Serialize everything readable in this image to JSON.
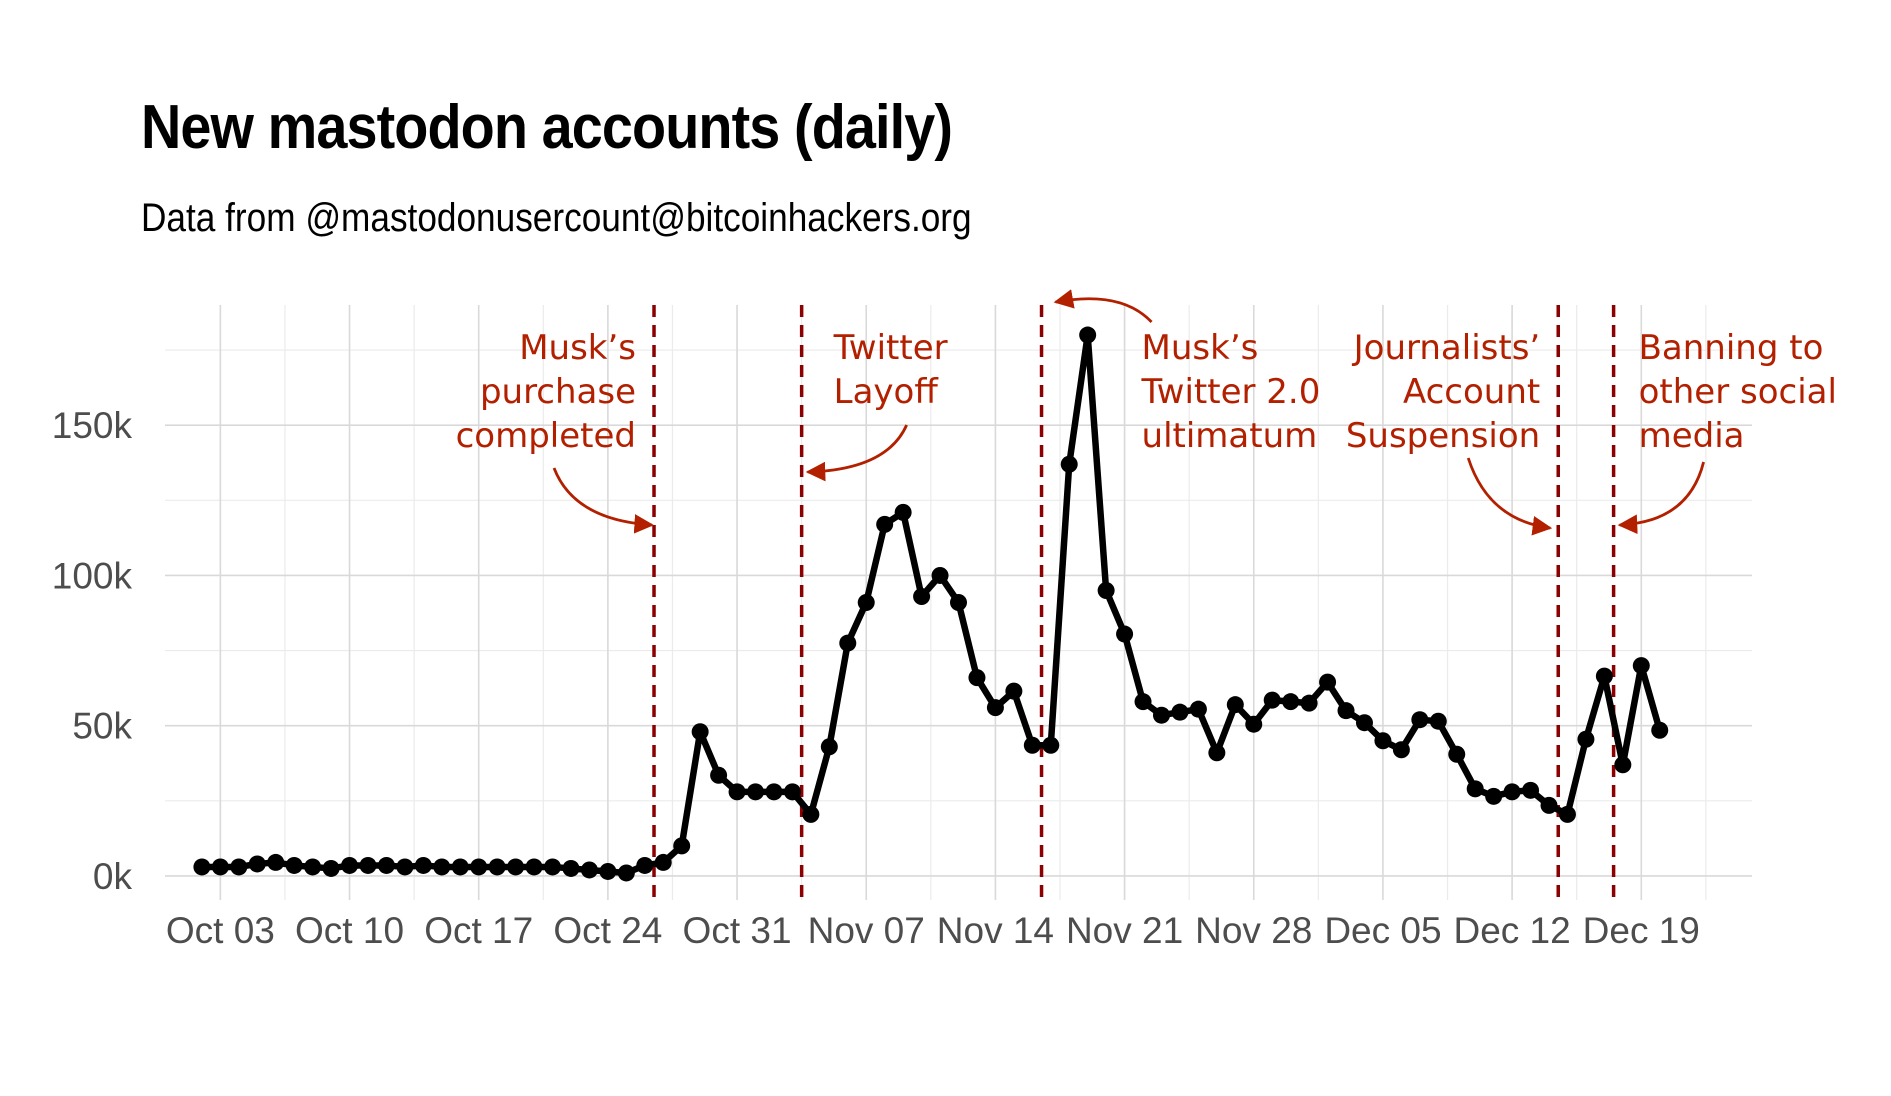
{
  "header": {
    "title": "New mastodon accounts (daily)",
    "subtitle": "Data from @mastodonusercount@bitcoinhackers.org"
  },
  "colors": {
    "line": "#000000",
    "grid": "#d9d9d9",
    "annotation_text": "#b22000",
    "vline": "#8b0000",
    "tick_text": "#4d4d4d"
  },
  "chart_data": {
    "type": "line",
    "title": "New mastodon accounts (daily)",
    "subtitle": "Data from @mastodonusercount@bitcoinhackers.org",
    "xlabel": "",
    "ylabel": "",
    "x_range": [
      "2022-09-30",
      "2022-12-25"
    ],
    "ylim": [
      -8000,
      190000
    ],
    "grid": true,
    "legend": "none",
    "x_ticks": [
      {
        "date": "2022-10-03",
        "label": "Oct 03"
      },
      {
        "date": "2022-10-10",
        "label": "Oct 10"
      },
      {
        "date": "2022-10-17",
        "label": "Oct 17"
      },
      {
        "date": "2022-10-24",
        "label": "Oct 24"
      },
      {
        "date": "2022-10-31",
        "label": "Oct 31"
      },
      {
        "date": "2022-11-07",
        "label": "Nov 07"
      },
      {
        "date": "2022-11-14",
        "label": "Nov 14"
      },
      {
        "date": "2022-11-21",
        "label": "Nov 21"
      },
      {
        "date": "2022-11-28",
        "label": "Nov 28"
      },
      {
        "date": "2022-12-05",
        "label": "Dec 05"
      },
      {
        "date": "2022-12-12",
        "label": "Dec 12"
      },
      {
        "date": "2022-12-19",
        "label": "Dec 19"
      }
    ],
    "y_ticks": [
      {
        "value": 0,
        "label": "0k"
      },
      {
        "value": 50000,
        "label": "50k"
      },
      {
        "value": 100000,
        "label": "100k"
      },
      {
        "value": 150000,
        "label": "150k"
      }
    ],
    "points": [
      {
        "x": "2022-10-02",
        "y": 3000
      },
      {
        "x": "2022-10-03",
        "y": 3000
      },
      {
        "x": "2022-10-04",
        "y": 3000
      },
      {
        "x": "2022-10-05",
        "y": 4000
      },
      {
        "x": "2022-10-06",
        "y": 4500
      },
      {
        "x": "2022-10-07",
        "y": 3500
      },
      {
        "x": "2022-10-08",
        "y": 3000
      },
      {
        "x": "2022-10-09",
        "y": 2500
      },
      {
        "x": "2022-10-10",
        "y": 3500
      },
      {
        "x": "2022-10-11",
        "y": 3500
      },
      {
        "x": "2022-10-12",
        "y": 3500
      },
      {
        "x": "2022-10-13",
        "y": 3000
      },
      {
        "x": "2022-10-14",
        "y": 3500
      },
      {
        "x": "2022-10-15",
        "y": 3000
      },
      {
        "x": "2022-10-16",
        "y": 3000
      },
      {
        "x": "2022-10-17",
        "y": 3000
      },
      {
        "x": "2022-10-18",
        "y": 3000
      },
      {
        "x": "2022-10-19",
        "y": 3000
      },
      {
        "x": "2022-10-20",
        "y": 3000
      },
      {
        "x": "2022-10-21",
        "y": 3000
      },
      {
        "x": "2022-10-22",
        "y": 2500
      },
      {
        "x": "2022-10-23",
        "y": 2000
      },
      {
        "x": "2022-10-24",
        "y": 1500
      },
      {
        "x": "2022-10-25",
        "y": 1000
      },
      {
        "x": "2022-10-26",
        "y": 3500
      },
      {
        "x": "2022-10-27",
        "y": 4500
      },
      {
        "x": "2022-10-28",
        "y": 10000
      },
      {
        "x": "2022-10-29",
        "y": 48000
      },
      {
        "x": "2022-10-30",
        "y": 33500
      },
      {
        "x": "2022-10-31",
        "y": 28000
      },
      {
        "x": "2022-11-01",
        "y": 28000
      },
      {
        "x": "2022-11-02",
        "y": 28000
      },
      {
        "x": "2022-11-03",
        "y": 28000
      },
      {
        "x": "2022-11-04",
        "y": 20500
      },
      {
        "x": "2022-11-05",
        "y": 43000
      },
      {
        "x": "2022-11-06",
        "y": 77500
      },
      {
        "x": "2022-11-07",
        "y": 91000
      },
      {
        "x": "2022-11-08",
        "y": 117000
      },
      {
        "x": "2022-11-09",
        "y": 121000
      },
      {
        "x": "2022-11-10",
        "y": 93000
      },
      {
        "x": "2022-11-11",
        "y": 100000
      },
      {
        "x": "2022-11-12",
        "y": 91000
      },
      {
        "x": "2022-11-13",
        "y": 66000
      },
      {
        "x": "2022-11-14",
        "y": 56000
      },
      {
        "x": "2022-11-15",
        "y": 61500
      },
      {
        "x": "2022-11-16",
        "y": 43500
      },
      {
        "x": "2022-11-17",
        "y": 43500
      },
      {
        "x": "2022-11-18",
        "y": 137000
      },
      {
        "x": "2022-11-19",
        "y": 180000
      },
      {
        "x": "2022-11-20",
        "y": 95000
      },
      {
        "x": "2022-11-21",
        "y": 80500
      },
      {
        "x": "2022-11-22",
        "y": 58000
      },
      {
        "x": "2022-11-23",
        "y": 53500
      },
      {
        "x": "2022-11-24",
        "y": 54500
      },
      {
        "x": "2022-11-25",
        "y": 55500
      },
      {
        "x": "2022-11-26",
        "y": 41000
      },
      {
        "x": "2022-11-27",
        "y": 57000
      },
      {
        "x": "2022-11-28",
        "y": 50500
      },
      {
        "x": "2022-11-29",
        "y": 58500
      },
      {
        "x": "2022-11-30",
        "y": 58000
      },
      {
        "x": "2022-12-01",
        "y": 57500
      },
      {
        "x": "2022-12-02",
        "y": 64500
      },
      {
        "x": "2022-12-03",
        "y": 55000
      },
      {
        "x": "2022-12-04",
        "y": 51000
      },
      {
        "x": "2022-12-05",
        "y": 45000
      },
      {
        "x": "2022-12-06",
        "y": 42000
      },
      {
        "x": "2022-12-07",
        "y": 52000
      },
      {
        "x": "2022-12-08",
        "y": 51500
      },
      {
        "x": "2022-12-09",
        "y": 40500
      },
      {
        "x": "2022-12-10",
        "y": 29000
      },
      {
        "x": "2022-12-11",
        "y": 26500
      },
      {
        "x": "2022-12-12",
        "y": 28000
      },
      {
        "x": "2022-12-13",
        "y": 28500
      },
      {
        "x": "2022-12-14",
        "y": 23500
      },
      {
        "x": "2022-12-15",
        "y": 20500
      },
      {
        "x": "2022-12-16",
        "y": 45500
      },
      {
        "x": "2022-12-17",
        "y": 66500
      },
      {
        "x": "2022-12-18",
        "y": 37000
      },
      {
        "x": "2022-12-19",
        "y": 70000
      },
      {
        "x": "2022-12-20",
        "y": 48500
      }
    ],
    "events": [
      {
        "date": "2022-10-27",
        "lines": [
          "Musk’s",
          "purchase",
          "completed"
        ],
        "side": "left"
      },
      {
        "date": "2022-11-04",
        "lines": [
          "Twitter",
          "Layoff"
        ],
        "side": "right"
      },
      {
        "date": "2022-11-17",
        "lines": [
          "Musk’s",
          "Twitter 2.0",
          "ultimatum"
        ],
        "side": "right"
      },
      {
        "date": "2022-12-15",
        "lines": [
          "Journalists’",
          "Account",
          "Suspension"
        ],
        "side": "left"
      },
      {
        "date": "2022-12-18",
        "lines": [
          "Banning to",
          "other social",
          "media"
        ],
        "side": "right"
      }
    ]
  }
}
